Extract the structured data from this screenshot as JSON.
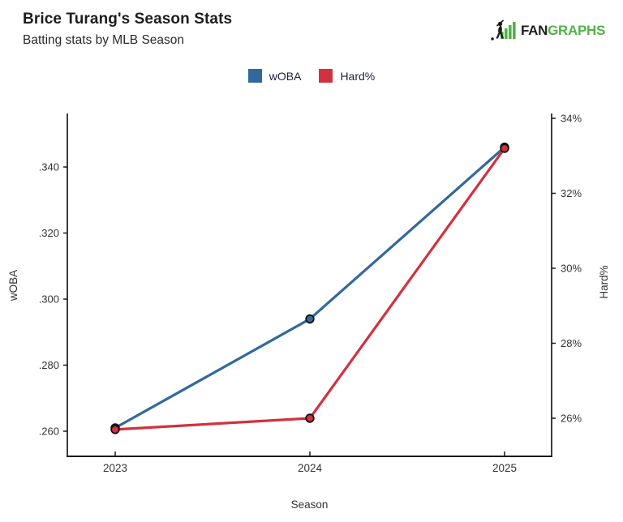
{
  "header": {
    "title": "Brice Turang's Season Stats",
    "subtitle": "Batting stats by MLB Season"
  },
  "logo": {
    "fan": "FAN",
    "graphs": "GRAPHS",
    "green": "#52b148",
    "black": "#1d1d1d"
  },
  "legend": [
    {
      "label": "wOBA",
      "color": "#33689c"
    },
    {
      "label": "Hard%",
      "color": "#d2313e"
    }
  ],
  "chart_data": {
    "type": "line",
    "x": [
      "2023",
      "2024",
      "2025"
    ],
    "xlabel": "Season",
    "series": [
      {
        "name": "wOBA",
        "axis": "left",
        "color": "#33689c",
        "values": [
          0.261,
          0.294,
          0.346
        ]
      },
      {
        "name": "Hard%",
        "axis": "right",
        "color": "#d2313e",
        "values": [
          25.7,
          26.0,
          33.2
        ]
      }
    ],
    "left_axis": {
      "label": "wOBA",
      "tick_labels": [
        ".260",
        ".280",
        ".300",
        ".320",
        ".340"
      ],
      "tick_values": [
        0.26,
        0.28,
        0.3,
        0.32,
        0.34
      ],
      "ylim": [
        0.252,
        0.356
      ]
    },
    "right_axis": {
      "label": "Hard%",
      "tick_labels": [
        "26%",
        "28%",
        "30%",
        "32%",
        "34%"
      ],
      "tick_values": [
        26,
        28,
        30,
        32,
        34
      ],
      "ylim": [
        25.0,
        34.1
      ]
    },
    "grid": false,
    "legend_position": "top-center",
    "marker": "circle-black-outline",
    "axis_color": "#1a1a1a",
    "tick_text_color": "#333333"
  }
}
